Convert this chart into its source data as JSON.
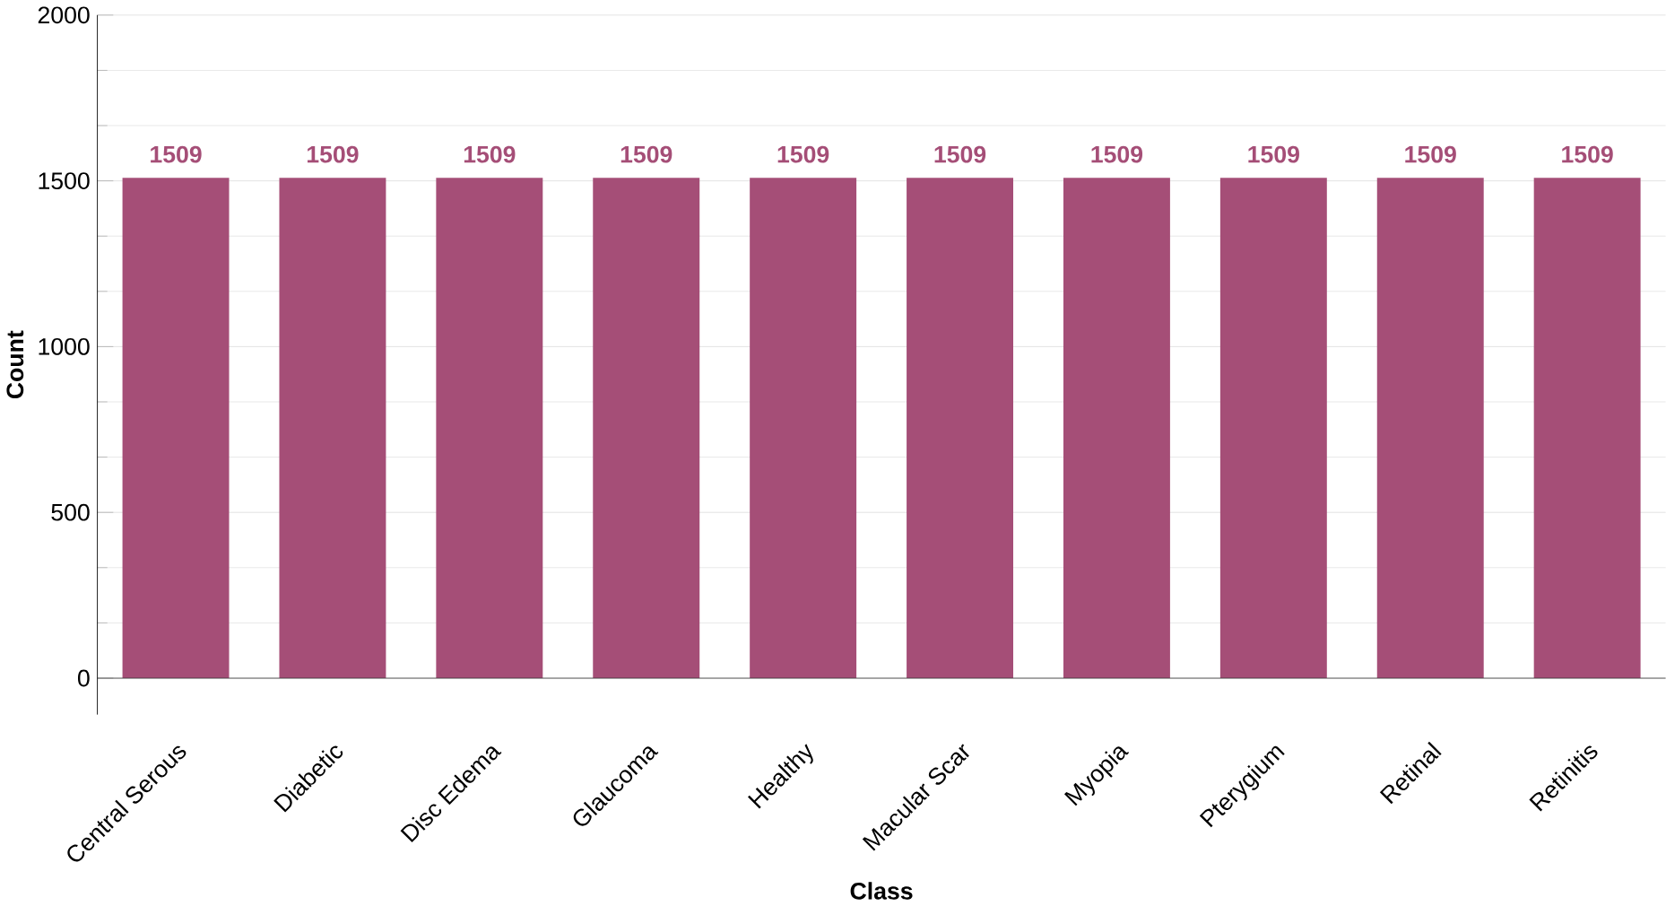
{
  "chart_data": {
    "type": "bar",
    "xlabel": "Class",
    "ylabel": "Count",
    "categories": [
      "Central Serous",
      "Diabetic",
      "Disc Edema",
      "Glaucoma",
      "Healthy",
      "Macular Scar",
      "Myopia",
      "Pterygium",
      "Retinal",
      "Retinitis"
    ],
    "values": [
      1509,
      1509,
      1509,
      1509,
      1509,
      1509,
      1509,
      1509,
      1509,
      1509
    ],
    "color": "#a54e77",
    "data_labels": true,
    "grid": "y",
    "ylim": [
      -110,
      2000
    ],
    "yticks": [
      0,
      500,
      1000,
      1500,
      2000
    ]
  }
}
